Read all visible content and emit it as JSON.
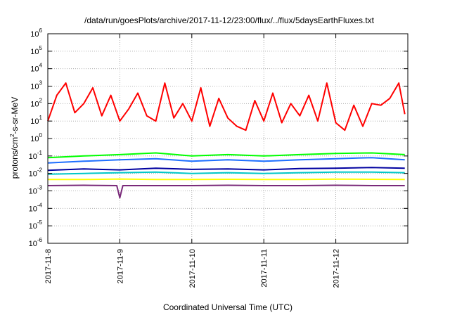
{
  "chart_data": {
    "type": "line",
    "title": "/data/run/goesPlots/archive/2017-11-12/23:00/flux/../flux/5daysEarthFluxes.txt",
    "xlabel": "Coordinated Universal Time (UTC)",
    "ylabel": {
      "prefix": "protons/cm",
      "sup": "2",
      "suffix": "-s-sr-MeV"
    },
    "y_scale": "log",
    "ylim": [
      1e-06,
      1000000.0
    ],
    "y_ticks": [
      {
        "value": 1e-06,
        "base": "10",
        "exp": "-6"
      },
      {
        "value": 1e-05,
        "base": "10",
        "exp": "-5"
      },
      {
        "value": 0.0001,
        "base": "10",
        "exp": "-4"
      },
      {
        "value": 0.001,
        "base": "10",
        "exp": "-3"
      },
      {
        "value": 0.01,
        "base": "10",
        "exp": "-2"
      },
      {
        "value": 0.1,
        "base": "10",
        "exp": "-1"
      },
      {
        "value": 1,
        "base": "10",
        "exp": "0"
      },
      {
        "value": 10,
        "base": "10",
        "exp": "1"
      },
      {
        "value": 100,
        "base": "10",
        "exp": "2"
      },
      {
        "value": 1000,
        "base": "10",
        "exp": "3"
      },
      {
        "value": 10000,
        "base": "10",
        "exp": "4"
      },
      {
        "value": 100000,
        "base": "10",
        "exp": "5"
      },
      {
        "value": 1000000,
        "base": "10",
        "exp": "6"
      }
    ],
    "xlim": [
      "2017-11-08T00:00",
      "2017-11-13T00:00"
    ],
    "x_ticks": [
      {
        "value": "2017-11-08T00:00",
        "label": "2017-11-8"
      },
      {
        "value": "2017-11-09T00:00",
        "label": "2017-11-9"
      },
      {
        "value": "2017-11-10T00:00",
        "label": "2017-11-10"
      },
      {
        "value": "2017-11-11T00:00",
        "label": "2017-11-11"
      },
      {
        "value": "2017-11-12T00:00",
        "label": "2017-11-12"
      }
    ],
    "grid": true,
    "legend": "none",
    "series": [
      {
        "color": "#ff0000",
        "x": [
          "2017-11-08T00:00",
          "2017-11-08T03:00",
          "2017-11-08T06:00",
          "2017-11-08T09:00",
          "2017-11-08T12:00",
          "2017-11-08T15:00",
          "2017-11-08T18:00",
          "2017-11-08T21:00",
          "2017-11-09T00:00",
          "2017-11-09T03:00",
          "2017-11-09T06:00",
          "2017-11-09T09:00",
          "2017-11-09T12:00",
          "2017-11-09T15:00",
          "2017-11-09T18:00",
          "2017-11-09T21:00",
          "2017-11-10T00:00",
          "2017-11-10T03:00",
          "2017-11-10T06:00",
          "2017-11-10T09:00",
          "2017-11-10T12:00",
          "2017-11-10T15:00",
          "2017-11-10T18:00",
          "2017-11-10T21:00",
          "2017-11-11T00:00",
          "2017-11-11T03:00",
          "2017-11-11T06:00",
          "2017-11-11T09:00",
          "2017-11-11T12:00",
          "2017-11-11T15:00",
          "2017-11-11T18:00",
          "2017-11-11T21:00",
          "2017-11-12T00:00",
          "2017-11-12T03:00",
          "2017-11-12T06:00",
          "2017-11-12T09:00",
          "2017-11-12T12:00",
          "2017-11-12T15:00",
          "2017-11-12T18:00",
          "2017-11-12T21:00",
          "2017-11-12T23:00"
        ],
        "values": [
          10,
          300,
          1500,
          30,
          100,
          800,
          20,
          300,
          10,
          50,
          400,
          20,
          10,
          1500,
          15,
          100,
          10,
          800,
          5,
          200,
          15,
          5,
          3,
          150,
          10,
          400,
          8,
          100,
          20,
          300,
          10,
          1500,
          8,
          3,
          80,
          5,
          100,
          80,
          200,
          1500,
          25
        ]
      },
      {
        "color": "#00ff00",
        "x": [
          "2017-11-08T00:00",
          "2017-11-08T12:00",
          "2017-11-09T00:00",
          "2017-11-09T12:00",
          "2017-11-10T00:00",
          "2017-11-10T12:00",
          "2017-11-11T00:00",
          "2017-11-11T12:00",
          "2017-11-12T00:00",
          "2017-11-12T12:00",
          "2017-11-12T23:00"
        ],
        "values": [
          0.08,
          0.1,
          0.12,
          0.15,
          0.1,
          0.12,
          0.1,
          0.12,
          0.14,
          0.15,
          0.12
        ]
      },
      {
        "color": "#1e6fff",
        "x": [
          "2017-11-08T00:00",
          "2017-11-08T12:00",
          "2017-11-09T00:00",
          "2017-11-09T12:00",
          "2017-11-10T00:00",
          "2017-11-10T12:00",
          "2017-11-11T00:00",
          "2017-11-11T12:00",
          "2017-11-12T00:00",
          "2017-11-12T12:00",
          "2017-11-12T23:00"
        ],
        "values": [
          0.04,
          0.05,
          0.06,
          0.07,
          0.05,
          0.06,
          0.05,
          0.06,
          0.07,
          0.08,
          0.06
        ]
      },
      {
        "color": "#00c8c8",
        "x": [
          "2017-11-08T00:00",
          "2017-11-08T12:00",
          "2017-11-09T00:00",
          "2017-11-09T12:00",
          "2017-11-10T00:00",
          "2017-11-10T12:00",
          "2017-11-11T00:00",
          "2017-11-11T12:00",
          "2017-11-12T00:00",
          "2017-11-12T12:00",
          "2017-11-12T23:00"
        ],
        "values": [
          0.009,
          0.01,
          0.011,
          0.012,
          0.01,
          0.011,
          0.01,
          0.011,
          0.012,
          0.012,
          0.011
        ]
      },
      {
        "color": "#0000a0",
        "x": [
          "2017-11-08T00:00",
          "2017-11-08T12:00",
          "2017-11-09T00:00",
          "2017-11-09T12:00",
          "2017-11-10T00:00",
          "2017-11-10T12:00",
          "2017-11-11T00:00",
          "2017-11-11T12:00",
          "2017-11-12T00:00",
          "2017-11-12T12:00",
          "2017-11-12T23:00"
        ],
        "values": [
          0.015,
          0.018,
          0.016,
          0.02,
          0.017,
          0.018,
          0.016,
          0.019,
          0.02,
          0.022,
          0.02
        ]
      },
      {
        "color": "#ffff00",
        "x": [
          "2017-11-08T00:00",
          "2017-11-08T12:00",
          "2017-11-09T00:00",
          "2017-11-09T12:00",
          "2017-11-10T00:00",
          "2017-11-10T12:00",
          "2017-11-11T00:00",
          "2017-11-11T12:00",
          "2017-11-12T00:00",
          "2017-11-12T12:00",
          "2017-11-12T23:00"
        ],
        "values": [
          0.0045,
          0.0045,
          0.0048,
          0.0045,
          0.0045,
          0.0046,
          0.0045,
          0.0045,
          0.0047,
          0.0046,
          0.0045
        ]
      },
      {
        "color": "#7a2a7a",
        "x": [
          "2017-11-08T00:00",
          "2017-11-08T12:00",
          "2017-11-08T23:00",
          "2017-11-09T00:00",
          "2017-11-09T01:00",
          "2017-11-09T12:00",
          "2017-11-10T00:00",
          "2017-11-10T12:00",
          "2017-11-11T00:00",
          "2017-11-11T12:00",
          "2017-11-12T00:00",
          "2017-11-12T12:00",
          "2017-11-12T23:00"
        ],
        "values": [
          0.002,
          0.0021,
          0.002,
          0.0004,
          0.002,
          0.002,
          0.002,
          0.0021,
          0.002,
          0.002,
          0.0021,
          0.002,
          0.002
        ]
      }
    ]
  }
}
